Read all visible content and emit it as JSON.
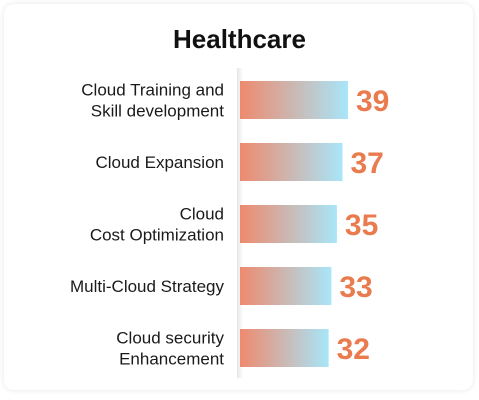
{
  "title": "Healthcare",
  "colors": {
    "bar_left": "#EE8A6E",
    "bar_right": "#A8E6F9",
    "value_text": "#EA7B4E"
  },
  "chart_data": {
    "type": "bar",
    "orientation": "horizontal",
    "title": "Healthcare",
    "categories": [
      [
        "Cloud Training and",
        "Skill development"
      ],
      [
        "Cloud Expansion"
      ],
      [
        "Cloud",
        "Cost Optimization"
      ],
      [
        "Multi-Cloud Strategy"
      ],
      [
        "Cloud security",
        "Enhancement"
      ]
    ],
    "values": [
      39,
      37,
      35,
      33,
      32
    ],
    "data_labels": [
      "39",
      "37",
      "35",
      "33",
      "32"
    ],
    "xlim": [
      0,
      39
    ],
    "grid": false,
    "legend": "none"
  }
}
